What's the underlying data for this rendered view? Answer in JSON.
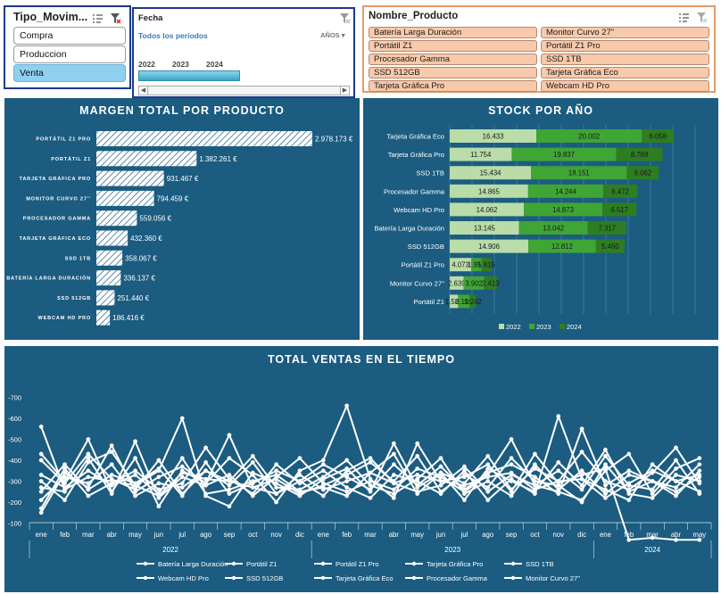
{
  "slicer_tipo": {
    "title": "Tipo_Movim...",
    "items": [
      {
        "label": "Compra",
        "selected": false
      },
      {
        "label": "Produccion",
        "selected": false
      },
      {
        "label": "Venta",
        "selected": true
      }
    ]
  },
  "slicer_fecha": {
    "title": "Fecha",
    "subtitle": "Todos los períodos",
    "unit": "AÑOS",
    "years": [
      "2022",
      "2023",
      "2024"
    ]
  },
  "slicer_producto": {
    "title": "Nombre_Producto",
    "items": [
      "Batería Larga Duración",
      "Monitor Curvo 27''",
      "Portátil Z1",
      "Portátil Z1 Pro",
      "Procesador Gamma",
      "SSD 1TB",
      "SSD 512GB",
      "Tarjeta Gráfica Eco",
      "Tarjeta Gráfica Pro",
      "Webcam HD Pro"
    ]
  },
  "colors": {
    "panel_bg": "#1b5c80",
    "stock_2022": "#b9dca8",
    "stock_2023": "#3fa535",
    "stock_2024": "#2e7d22",
    "line": "#ffffff"
  },
  "chart_data": [
    {
      "type": "bar",
      "orientation": "horizontal",
      "title": "MARGEN TOTAL POR PRODUCTO",
      "categories": [
        "PORTÁTIL Z1 PRO",
        "PORTÁTIL Z1",
        "TARJETA GRÁFICA PRO",
        "MONITOR CURVO 27''",
        "PROCESADOR GAMMA",
        "TARJETA GRÁFICA ECO",
        "SSD 1TB",
        "BATERÍA LARGA DURACIÓN",
        "SSD 512GB",
        "WEBCAM HD PRO"
      ],
      "values": [
        2978173,
        1382261,
        931467,
        794459,
        559056,
        432360,
        358067,
        336137,
        251440,
        186416
      ],
      "value_labels": [
        "2.978.173 €",
        "1.382.261 €",
        "931.467 €",
        "794.459 €",
        "559.056 €",
        "432.360 €",
        "358.067 €",
        "336.137 €",
        "251.440 €",
        "186.416 €"
      ],
      "bar_pattern": "diagonal hatch"
    },
    {
      "type": "bar",
      "orientation": "horizontal",
      "stacked": true,
      "title": "STOCK POR AÑO",
      "categories": [
        "Tarjeta Gráfica Eco",
        "Tarjeta Gráfica Pro",
        "SSD 1TB",
        "Procesador Gamma",
        "Webcam HD Pro",
        "Batería Larga Duración",
        "SSD 512GB",
        "Portátil Z1 Pro",
        "Monitor Curvo 27''",
        "Portátil Z1"
      ],
      "series": [
        {
          "name": "2022",
          "values": [
            16433,
            11754,
            15434,
            14865,
            14062,
            13145,
            14906,
            4073,
            2639,
            1581
          ],
          "labels": [
            "16.433",
            "11.754",
            "15.434",
            "14.865",
            "14.062",
            "13.145",
            "14.906",
            "4.073",
            "2.639",
            "1.581"
          ]
        },
        {
          "name": "2023",
          "values": [
            20002,
            19837,
            18151,
            14244,
            14873,
            13042,
            12812,
            1959,
            3902,
            2199
          ],
          "labels": [
            "20.002",
            "19.837",
            "18.151",
            "14.244",
            "14.873",
            "13.042",
            "12.812",
            "1.959",
            "3.902",
            "2.199"
          ]
        },
        {
          "name": "2024",
          "values": [
            6058,
            8769,
            6062,
            6472,
            6517,
            7317,
            5460,
            1816,
            2413,
            1242
          ],
          "labels": [
            "6.058",
            "8.769",
            "6.062",
            "6.472",
            "6.517",
            "7.317",
            "5.460",
            "1.816",
            "2.413",
            "1.242"
          ]
        }
      ],
      "legend": "bottom"
    },
    {
      "type": "line",
      "title": "TOTAL VENTAS EN EL TIEMPO",
      "y_ticks": [
        "-700",
        "-600",
        "-500",
        "-400",
        "-300",
        "-200",
        "-100"
      ],
      "ylim": [
        -50,
        -730
      ],
      "x_month_labels": [
        "ene",
        "feb",
        "mar",
        "abr",
        "may",
        "jun",
        "jul",
        "ago",
        "sep",
        "oct",
        "nov",
        "dic",
        "ene",
        "feb",
        "mar",
        "abr",
        "may",
        "jun",
        "jul",
        "ago",
        "sep",
        "oct",
        "nov",
        "dic",
        "ene",
        "feb",
        "mar",
        "abr",
        "may"
      ],
      "x_year_labels": [
        "2022",
        "2023",
        "2024"
      ],
      "legend": "bottom",
      "series": [
        {
          "name": "Batería Larga Duración",
          "values": [
            -560,
            -260,
            -320,
            -300,
            -280,
            -230,
            -340,
            -310,
            -300,
            -270,
            -240,
            -300,
            -230,
            -350,
            -410,
            -290,
            -330,
            -300,
            -280,
            -320,
            -340,
            -260,
            -300,
            -310,
            -220,
            -290,
            -350,
            -300,
            -330
          ]
        },
        {
          "name": "Portátil Z1",
          "values": [
            -430,
            -300,
            -500,
            -250,
            -410,
            -180,
            -350,
            -290,
            -410,
            -330,
            -200,
            -350,
            -400,
            -660,
            -310,
            -220,
            -480,
            -300,
            -320,
            -380,
            -250,
            -430,
            -290,
            -330,
            -360,
            -20,
            -30,
            -20,
            -20
          ]
        },
        {
          "name": "Portátil Z1 Pro",
          "values": [
            -300,
            -210,
            -390,
            -440,
            -280,
            -350,
            -600,
            -230,
            -180,
            -340,
            -290,
            -230,
            -310,
            -360,
            -250,
            -480,
            -270,
            -340,
            -210,
            -360,
            -300,
            -250,
            -390,
            -280,
            -450,
            -240,
            -220,
            -330,
            -300
          ]
        },
        {
          "name": "Tarjeta Gráfica Pro",
          "values": [
            -150,
            -340,
            -270,
            -470,
            -250,
            -320,
            -370,
            -290,
            -520,
            -270,
            -310,
            -240,
            -280,
            -330,
            -390,
            -300,
            -420,
            -250,
            -330,
            -270,
            -410,
            -300,
            -280,
            -200,
            -380,
            -250,
            -300,
            -230,
            -350
          ]
        },
        {
          "name": "SSD 1TB",
          "values": [
            -400,
            -290,
            -430,
            -310,
            -260,
            -400,
            -240,
            -350,
            -280,
            -390,
            -240,
            -330,
            -260,
            -300,
            -340,
            -430,
            -240,
            -340,
            -290,
            -420,
            -260,
            -360,
            -300,
            -440,
            -300,
            -260,
            -340,
            -460,
            -290
          ]
        },
        {
          "name": "Webcam HD Pro",
          "values": [
            -170,
            -360,
            -230,
            -290,
            -350,
            -260,
            -290,
            -460,
            -310,
            -240,
            -380,
            -290,
            -350,
            -270,
            -220,
            -330,
            -300,
            -240,
            -350,
            -210,
            -310,
            -240,
            -610,
            -310,
            -260,
            -210,
            -380,
            -300,
            -250
          ]
        },
        {
          "name": "SSD 512GB",
          "values": [
            -270,
            -250,
            -410,
            -240,
            -490,
            -220,
            -320,
            -280,
            -330,
            -230,
            -320,
            -410,
            -290,
            -250,
            -300,
            -260,
            -360,
            -320,
            -250,
            -330,
            -500,
            -280,
            -250,
            -210,
            -350,
            -430,
            -240,
            -360,
            -410
          ]
        },
        {
          "name": "Tarjeta Gráfica Eco",
          "values": [
            -210,
            -320,
            -290,
            -380,
            -230,
            -290,
            -270,
            -350,
            -300,
            -420,
            -270,
            -260,
            -320,
            -400,
            -280,
            -240,
            -310,
            -410,
            -240,
            -300,
            -230,
            -380,
            -260,
            -350,
            -240,
            -330,
            -300,
            -270,
            -380
          ]
        },
        {
          "name": "Procesador Gamma",
          "values": [
            -330,
            -270,
            -350,
            -280,
            -330,
            -240,
            -410,
            -240,
            -260,
            -300,
            -330,
            -250,
            -270,
            -230,
            -340,
            -290,
            -250,
            -280,
            -370,
            -250,
            -330,
            -280,
            -350,
            -260,
            -420,
            -280,
            -260,
            -400,
            -240
          ]
        },
        {
          "name": "Monitor Curvo 27''",
          "values": [
            -250,
            -380,
            -260,
            -330,
            -290,
            -360,
            -230,
            -390,
            -240,
            -290,
            -350,
            -300,
            -380,
            -320,
            -260,
            -380,
            -280,
            -370,
            -260,
            -340,
            -380,
            -320,
            -240,
            -550,
            -280,
            -350,
            -300,
            -250,
            -320
          ]
        }
      ]
    }
  ]
}
